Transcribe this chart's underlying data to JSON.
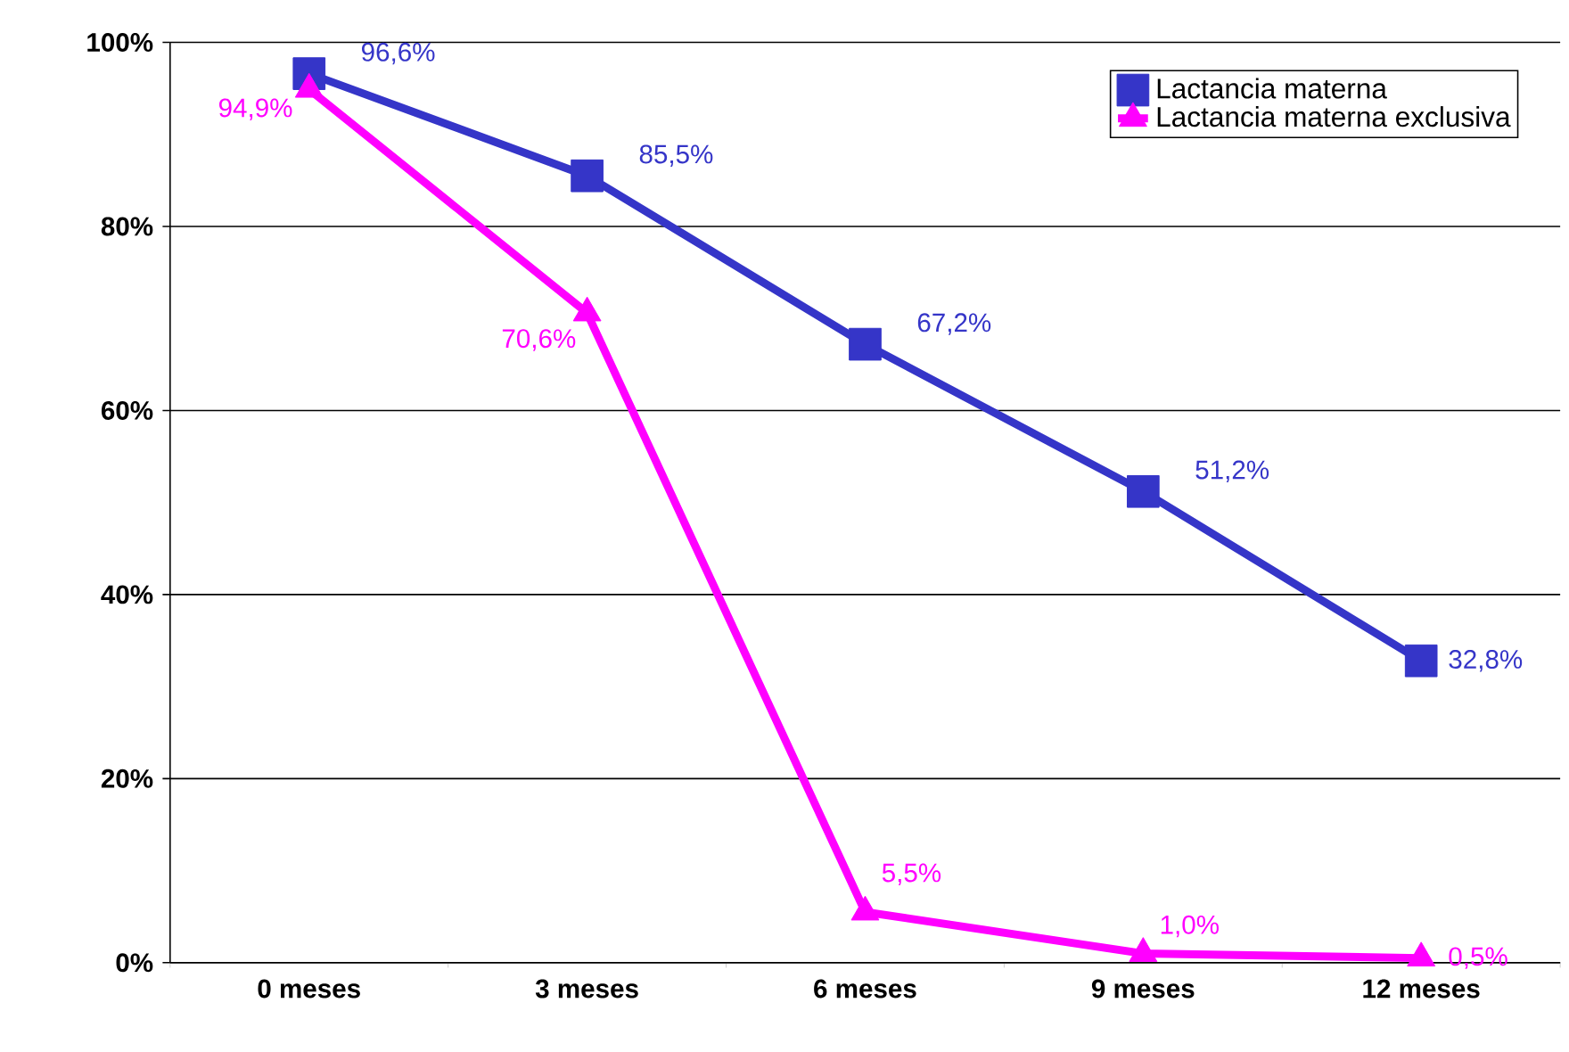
{
  "chart_data": {
    "type": "line",
    "categories": [
      "0 meses",
      "3 meses",
      "6 meses",
      "9 meses",
      "12 meses"
    ],
    "series": [
      {
        "name": "Lactancia materna",
        "color": "#3535c8",
        "marker": "square",
        "values": [
          96.6,
          85.5,
          67.2,
          51.2,
          32.8
        ],
        "value_labels": [
          "96,6%",
          "85,5%",
          "67,2%",
          "51,2%",
          "32,8%"
        ]
      },
      {
        "name": "Lactancia materna exclusiva",
        "color": "#ff00ff",
        "marker": "triangle",
        "values": [
          94.9,
          70.6,
          5.5,
          1.0,
          0.5
        ],
        "value_labels": [
          "94,9%",
          "70,6%",
          "5,5%",
          "1,0%",
          "0,5%"
        ]
      }
    ],
    "ylim": [
      0,
      100
    ],
    "yticks": [
      {
        "value": 0,
        "label": "0%"
      },
      {
        "value": 20,
        "label": "20%"
      },
      {
        "value": 40,
        "label": "40%"
      },
      {
        "value": 60,
        "label": "60%"
      },
      {
        "value": 80,
        "label": "80%"
      },
      {
        "value": 100,
        "label": "100%"
      }
    ],
    "grid": "y",
    "legend": "top right",
    "line_style": "solid"
  }
}
